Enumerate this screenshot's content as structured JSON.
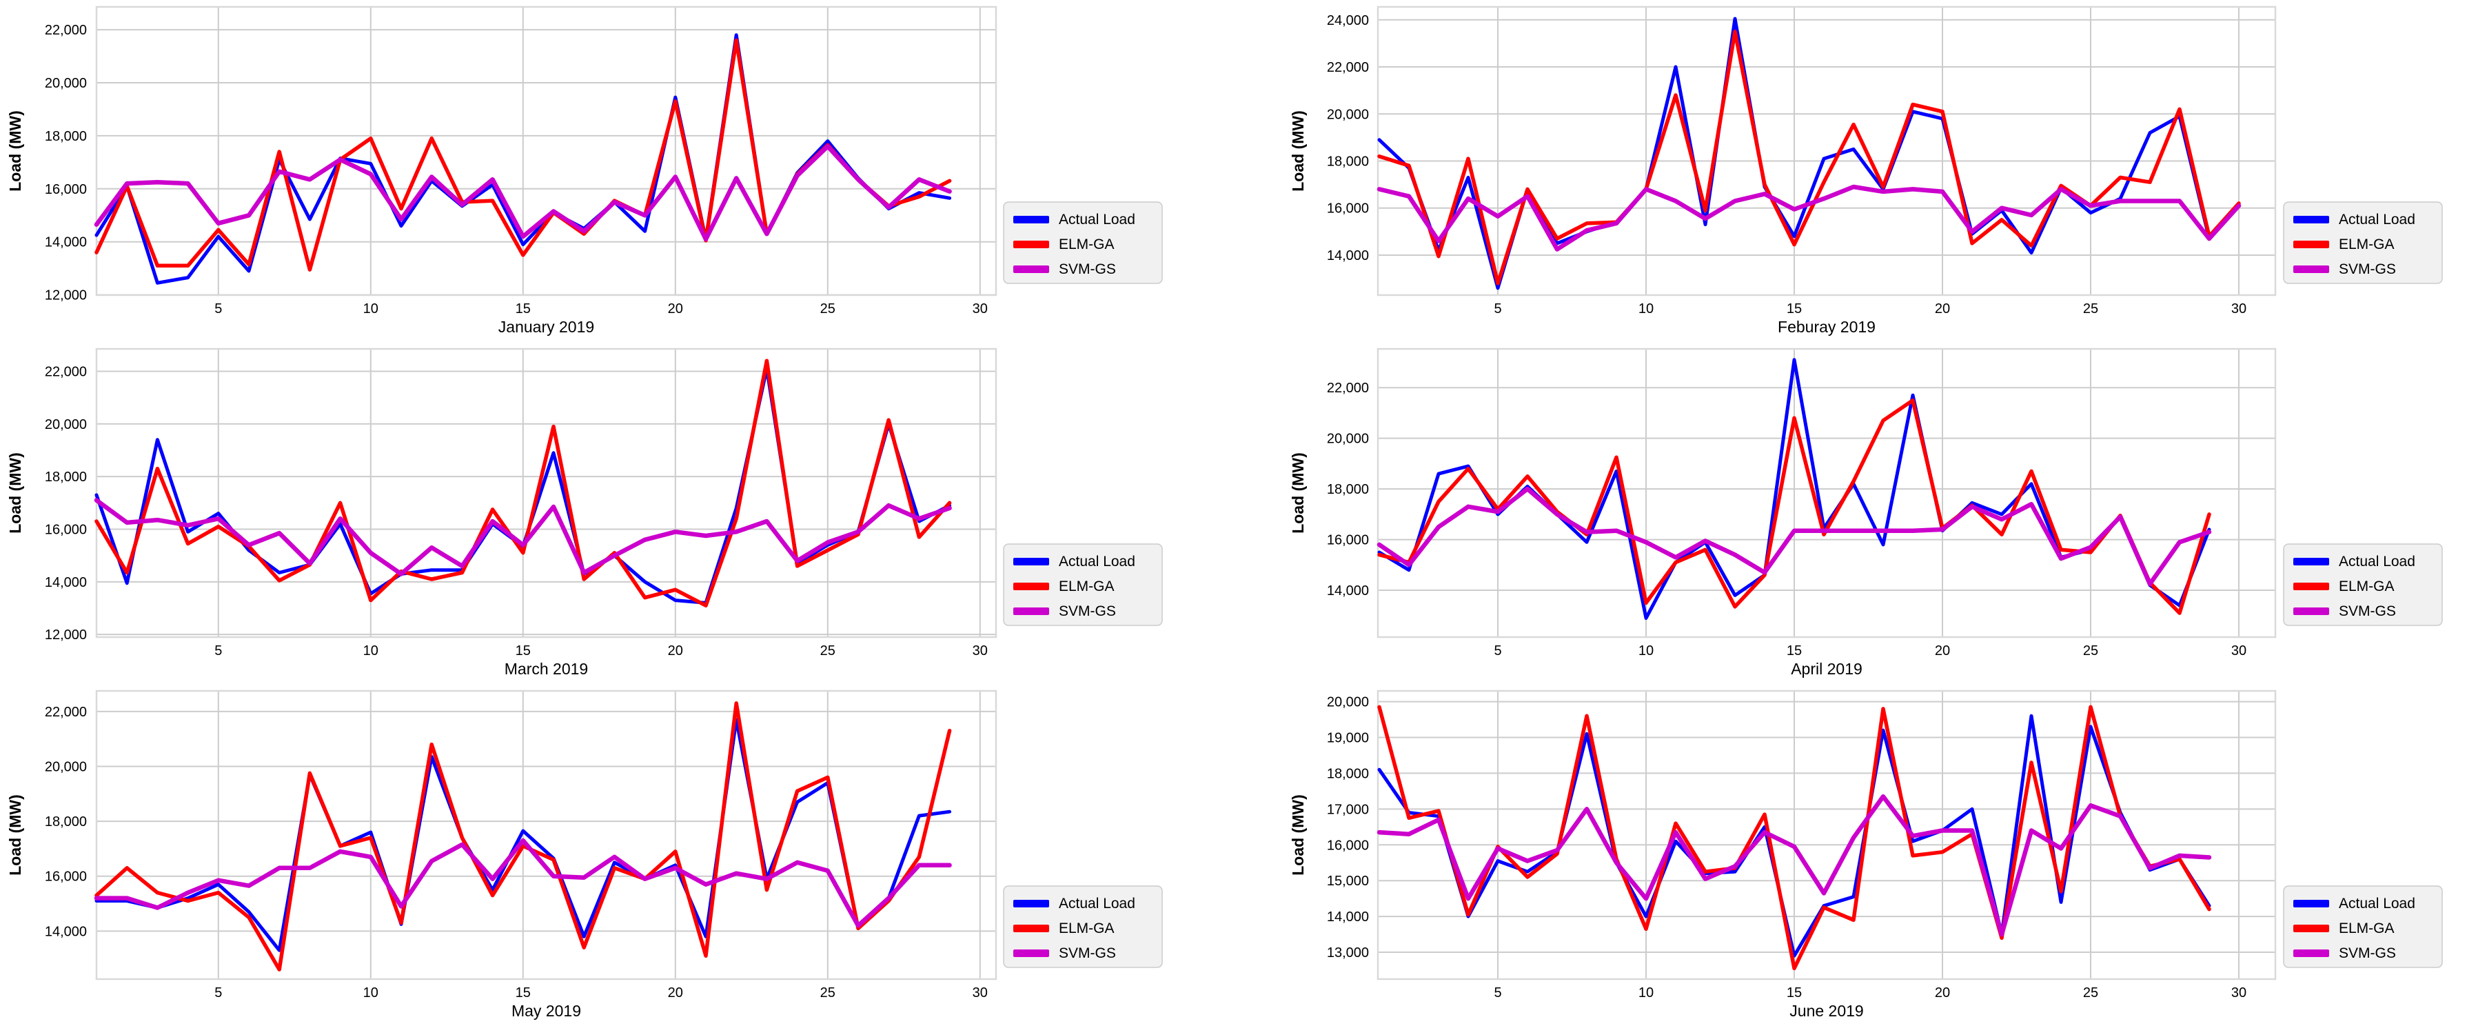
{
  "figure": {
    "ylabel": "Load (MW)",
    "legend": {
      "entries": [
        {
          "label": "Actual Load",
          "color": "#0000FF"
        },
        {
          "label": "ELM-GA",
          "color": "#FF0000"
        },
        {
          "label": "SVM-GS",
          "color": "#CC00CC"
        }
      ],
      "background": "#F1F1F1",
      "border": "#CCCCCC"
    },
    "grid_color": "#CCCCCC",
    "frame_color": "#D9D9D9"
  },
  "chart_data": [
    {
      "type": "line",
      "title": "January 2019",
      "ylabel": "Load (MW)",
      "xticks": [
        5,
        10,
        15,
        20,
        25,
        30
      ],
      "x_first_day": 1,
      "yticks": [
        12000,
        14000,
        16000,
        18000,
        20000,
        22000
      ],
      "ylim": [
        11990,
        22860
      ],
      "grid": true,
      "legend_position": "right",
      "series": [
        {
          "name": "Actual Load",
          "color": "#0000FF",
          "values": [
            14250,
            16100,
            12450,
            12650,
            14200,
            12900,
            17100,
            14850,
            17150,
            16950,
            14600,
            16300,
            15350,
            16150,
            13900,
            15100,
            14500,
            15500,
            14400,
            19450,
            14100,
            21800,
            14300,
            16600,
            17800,
            16400,
            15250,
            15850,
            15650
          ]
        },
        {
          "name": "ELM-GA",
          "color": "#FF0000",
          "values": [
            13600,
            16100,
            13100,
            13100,
            14450,
            13150,
            17400,
            12950,
            17100,
            17900,
            15250,
            17900,
            15500,
            15550,
            13500,
            15100,
            14300,
            15550,
            15000,
            19300,
            14050,
            21600,
            14300,
            16550,
            17650,
            16350,
            15350,
            15700,
            16300
          ]
        },
        {
          "name": "SVM-GS",
          "color": "#CC00CC",
          "values": [
            14650,
            16200,
            16250,
            16200,
            14700,
            15000,
            16650,
            16350,
            17100,
            16550,
            14850,
            16450,
            15400,
            16350,
            14200,
            15150,
            14400,
            15500,
            15000,
            16450,
            14100,
            16400,
            14300,
            16500,
            17600,
            16350,
            15300,
            16350,
            15900
          ]
        }
      ]
    },
    {
      "type": "line",
      "title": "Feburay 2019",
      "ylabel": "Load (MW)",
      "xticks": [
        5,
        10,
        15,
        20,
        25,
        30
      ],
      "x_first_day": 1,
      "yticks": [
        14000,
        16000,
        18000,
        20000,
        22000,
        24000
      ],
      "ylim": [
        12300,
        24550
      ],
      "grid": true,
      "legend_position": "right",
      "series": [
        {
          "name": "Actual Load",
          "color": "#0000FF",
          "values": [
            18900,
            17700,
            14200,
            17300,
            12600,
            16800,
            14500,
            15000,
            15400,
            16800,
            22000,
            15300,
            24050,
            16900,
            14800,
            18100,
            18500,
            16800,
            20100,
            19800,
            14900,
            15900,
            14100,
            16850,
            15800,
            16400,
            19200,
            19900,
            14700,
            16100
          ]
        },
        {
          "name": "ELM-GA",
          "color": "#FF0000",
          "values": [
            18200,
            17800,
            13950,
            18100,
            12800,
            16800,
            14700,
            15350,
            15400,
            16800,
            20800,
            15900,
            23500,
            17000,
            14450,
            17100,
            19550,
            16900,
            20400,
            20100,
            14500,
            15500,
            14400,
            16950,
            16100,
            17300,
            17100,
            20200,
            14800,
            16200
          ]
        },
        {
          "name": "SVM-GS",
          "color": "#CC00CC",
          "values": [
            16800,
            16500,
            14600,
            16400,
            15650,
            16500,
            14250,
            15050,
            15350,
            16800,
            16300,
            15550,
            16300,
            16600,
            15950,
            16400,
            16900,
            16700,
            16800,
            16700,
            15000,
            16000,
            15700,
            16800,
            16100,
            16300,
            16300,
            16300,
            14700,
            16100
          ]
        }
      ]
    },
    {
      "type": "line",
      "title": "March 2019",
      "ylabel": "Load (MW)",
      "xticks": [
        5,
        10,
        15,
        20,
        25,
        30
      ],
      "x_first_day": 1,
      "yticks": [
        12000,
        14000,
        16000,
        18000,
        20000,
        22000
      ],
      "ylim": [
        11900,
        22850
      ],
      "grid": true,
      "legend_position": "right",
      "series": [
        {
          "name": "Actual Load",
          "color": "#0000FF",
          "values": [
            17300,
            13950,
            19400,
            15900,
            16600,
            15200,
            14350,
            14650,
            16200,
            13550,
            14300,
            14450,
            14450,
            16200,
            15350,
            18900,
            14300,
            15000,
            14000,
            13300,
            13200,
            16800,
            22100,
            14700,
            15400,
            15900,
            20000,
            16300,
            16900
          ]
        },
        {
          "name": "ELM-GA",
          "color": "#FF0000",
          "values": [
            16300,
            14350,
            18300,
            15450,
            16100,
            15350,
            14050,
            14650,
            17000,
            13300,
            14400,
            14100,
            14350,
            16750,
            15100,
            19900,
            14100,
            15100,
            13400,
            13700,
            13100,
            16400,
            22400,
            14600,
            15200,
            15800,
            20150,
            15700,
            17000
          ]
        },
        {
          "name": "SVM-GS",
          "color": "#CC00CC",
          "values": [
            17100,
            16250,
            16350,
            16150,
            16400,
            15400,
            15850,
            14700,
            16400,
            15100,
            14300,
            15300,
            14600,
            16300,
            15400,
            16850,
            14350,
            15000,
            15600,
            15900,
            15750,
            15900,
            16300,
            14800,
            15500,
            15900,
            16900,
            16400,
            16800
          ]
        }
      ]
    },
    {
      "type": "line",
      "title": "April 2019",
      "ylabel": "Load (MW)",
      "xticks": [
        5,
        10,
        15,
        20,
        25,
        30
      ],
      "x_first_day": 1,
      "yticks": [
        14000,
        16000,
        18000,
        20000,
        22000
      ],
      "ylim": [
        12150,
        23530
      ],
      "grid": true,
      "legend_position": "right",
      "series": [
        {
          "name": "Actual Load",
          "color": "#0000FF",
          "values": [
            15500,
            14800,
            18600,
            18900,
            17000,
            18100,
            17000,
            15900,
            18700,
            12900,
            15100,
            15900,
            13800,
            14600,
            23100,
            16450,
            18200,
            15800,
            21700,
            16350,
            17450,
            17000,
            18200,
            15300,
            15600,
            16900,
            14200,
            13400,
            16400
          ]
        },
        {
          "name": "ELM-GA",
          "color": "#FF0000",
          "values": [
            15400,
            15100,
            17500,
            18800,
            17200,
            18500,
            17100,
            16200,
            19250,
            13500,
            15100,
            15600,
            13350,
            14600,
            20800,
            16200,
            18300,
            20700,
            21500,
            16450,
            17350,
            16200,
            18700,
            15600,
            15500,
            16950,
            14300,
            13100,
            17000
          ]
        },
        {
          "name": "SVM-GS",
          "color": "#CC00CC",
          "values": [
            15800,
            15000,
            16500,
            17300,
            17100,
            18000,
            17000,
            16300,
            16350,
            15900,
            15300,
            15950,
            15400,
            14700,
            16350,
            16350,
            16350,
            16350,
            16350,
            16400,
            17300,
            16800,
            17400,
            15250,
            15700,
            16900,
            14250,
            15900,
            16300
          ]
        }
      ]
    },
    {
      "type": "line",
      "title": "May 2019",
      "ylabel": "Load (MW)",
      "xticks": [
        5,
        10,
        15,
        20,
        25,
        30
      ],
      "x_first_day": 1,
      "yticks": [
        14000,
        16000,
        18000,
        20000,
        22000
      ],
      "ylim": [
        12250,
        22750
      ],
      "grid": true,
      "legend_position": "right",
      "series": [
        {
          "name": "Actual Load",
          "color": "#0000FF",
          "values": [
            15100,
            15100,
            14850,
            15200,
            15700,
            14700,
            13300,
            19700,
            17100,
            17600,
            14250,
            20350,
            17400,
            15500,
            17650,
            16650,
            13800,
            16500,
            15900,
            16400,
            13800,
            21700,
            15900,
            18700,
            19400,
            14100,
            15200,
            18200,
            18350
          ]
        },
        {
          "name": "ELM-GA",
          "color": "#FF0000",
          "values": [
            15300,
            16300,
            15400,
            15100,
            15400,
            14500,
            12600,
            19750,
            17100,
            17400,
            14300,
            20800,
            17400,
            15300,
            17100,
            16600,
            13400,
            16300,
            15900,
            16900,
            13100,
            22300,
            15500,
            19100,
            19600,
            14100,
            15100,
            16700,
            21300
          ]
        },
        {
          "name": "SVM-GS",
          "color": "#CC00CC",
          "values": [
            15200,
            15200,
            14850,
            15400,
            15850,
            15650,
            16300,
            16300,
            16900,
            16700,
            14900,
            16550,
            17150,
            15900,
            17300,
            16000,
            15950,
            16700,
            15900,
            16300,
            15700,
            16100,
            15900,
            16500,
            16200,
            14200,
            15200,
            16400,
            16400
          ]
        }
      ]
    },
    {
      "type": "line",
      "title": "June 2019",
      "ylabel": "Load (MW)",
      "xticks": [
        5,
        10,
        15,
        20,
        25,
        30
      ],
      "x_first_day": 1,
      "yticks": [
        13000,
        14000,
        15000,
        16000,
        17000,
        18000,
        19000,
        20000
      ],
      "ylim": [
        12250,
        20300
      ],
      "grid": true,
      "legend_position": "right",
      "series": [
        {
          "name": "Actual Load",
          "color": "#0000FF",
          "values": [
            18100,
            16900,
            16800,
            14000,
            15550,
            15250,
            15800,
            19100,
            15500,
            14000,
            16100,
            15200,
            15250,
            16500,
            12900,
            14300,
            14550,
            19200,
            16100,
            16400,
            17000,
            13500,
            19600,
            14400,
            19300,
            16900,
            15300,
            15600,
            14300
          ]
        },
        {
          "name": "ELM-GA",
          "color": "#FF0000",
          "values": [
            19850,
            16750,
            16950,
            14050,
            15950,
            15100,
            15750,
            19600,
            15600,
            13650,
            16600,
            15250,
            15350,
            16850,
            12550,
            14250,
            13900,
            19800,
            15700,
            15800,
            16300,
            13400,
            18300,
            14700,
            19850,
            16800,
            15400,
            15600,
            14200
          ]
        },
        {
          "name": "SVM-GS",
          "color": "#CC00CC",
          "values": [
            16350,
            16300,
            16700,
            14500,
            15900,
            15550,
            15850,
            17000,
            15500,
            14500,
            16350,
            15050,
            15400,
            16350,
            15950,
            14650,
            16200,
            17350,
            16250,
            16400,
            16400,
            13500,
            16400,
            15900,
            17100,
            16800,
            15350,
            15700,
            15650
          ]
        }
      ]
    }
  ]
}
